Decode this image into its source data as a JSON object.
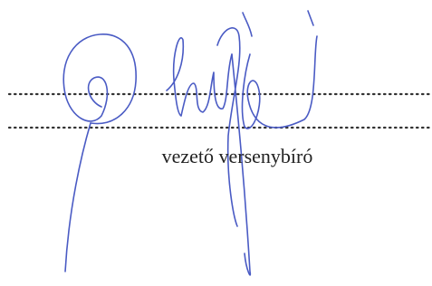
{
  "label": "vezető versenybíró"
}
